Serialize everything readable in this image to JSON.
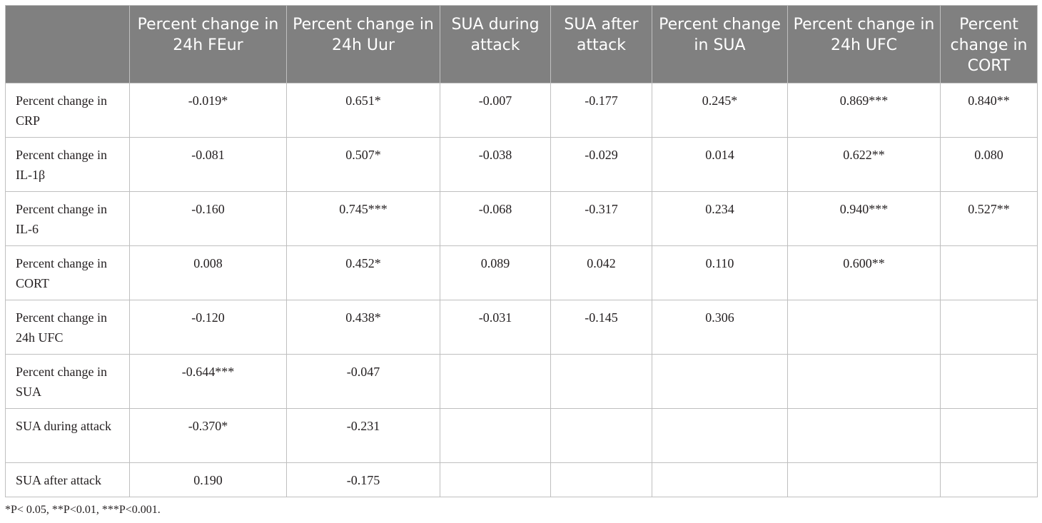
{
  "table": {
    "columns": [
      "",
      "Percent change in 24h FEur",
      "Percent change in 24h Uur",
      "SUA during attack",
      "SUA after attack",
      "Percent change in SUA",
      "Percent change in 24h UFC",
      "Percent change in CORT"
    ],
    "rows": [
      {
        "label": "Percent change in CRP",
        "cells": [
          "-0.019*",
          "0.651*",
          "-0.007",
          "-0.177",
          "0.245*",
          "0.869***",
          "0.840**"
        ]
      },
      {
        "label": "Percent change in IL-1β",
        "cells": [
          "-0.081",
          "0.507*",
          "-0.038",
          "-0.029",
          "0.014",
          "0.622**",
          "0.080"
        ]
      },
      {
        "label": "Percent change in IL-6",
        "cells": [
          "-0.160",
          "0.745***",
          "-0.068",
          "-0.317",
          "0.234",
          "0.940***",
          "0.527**"
        ]
      },
      {
        "label": "Percent change in CORT",
        "cells": [
          "0.008",
          "0.452*",
          "0.089",
          "0.042",
          "0.110",
          "0.600**",
          ""
        ]
      },
      {
        "label": "Percent change in 24h UFC",
        "cells": [
          "-0.120",
          "0.438*",
          "-0.031",
          "-0.145",
          "0.306",
          "",
          ""
        ]
      },
      {
        "label": "Percent change in SUA",
        "cells": [
          "-0.644***",
          "-0.047",
          "",
          "",
          "",
          "",
          ""
        ]
      },
      {
        "label": "SUA during attack",
        "cells": [
          "-0.370*",
          "-0.231",
          "",
          "",
          "",
          "",
          ""
        ]
      },
      {
        "label": "SUA after attack",
        "cells": [
          "0.190",
          "-0.175",
          "",
          "",
          "",
          "",
          ""
        ]
      }
    ]
  },
  "footnote": "*P< 0.05, **P<0.01, ***P<0.001.",
  "colors": {
    "header_bg": "#808080",
    "header_text": "#ffffff",
    "border": "#bfbfbf"
  }
}
